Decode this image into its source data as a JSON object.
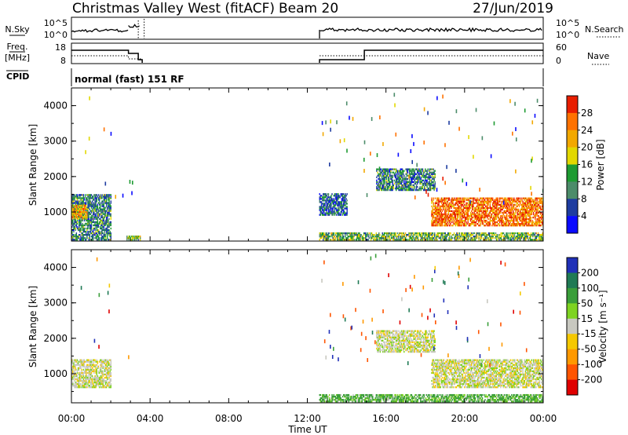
{
  "header": {
    "station": "Christmas Valley West (fitACF)",
    "beam": "Beam 20",
    "date": "27/Jun/2019"
  },
  "sky_panel": {
    "left_label": "N.Sky",
    "left_ticks": [
      "10^5",
      "10^0"
    ],
    "right_ticks": [
      "10^5",
      "10^0"
    ],
    "right_label": "N.Search"
  },
  "freq_panel": {
    "left_label_1": "Freq.",
    "left_label_2": "[MHz]",
    "left_ticks": [
      "18",
      "8"
    ],
    "right_ticks": [
      "60",
      "0"
    ],
    "right_label": "Nave"
  },
  "cpid_panel": {
    "label": "CPID",
    "mode": "normal (fast) 151 RF"
  },
  "chart_data": [
    {
      "type": "heatmap",
      "title": "",
      "ylabel": "Slant Range [km]",
      "xlabel": "",
      "y_ticks": [
        "4000",
        "3000",
        "2000",
        "1000"
      ],
      "ylim": [
        180,
        4500
      ],
      "colorbar": {
        "label": "Power [dB]",
        "ticks": [
          "28",
          "24",
          "20",
          "16",
          "12",
          "8",
          "4"
        ],
        "colors": [
          "#e81e00",
          "#ff7200",
          "#f2a800",
          "#e2d800",
          "#1e9b32",
          "#4c8c6a",
          "#1e3ca0",
          "#0a0aff"
        ]
      },
      "regions": [
        {
          "t": [
            0.0,
            2.0
          ],
          "range": [
            200,
            1500
          ],
          "value_db": 10
        },
        {
          "t": [
            0.0,
            0.8
          ],
          "range": [
            800,
            1200
          ],
          "value_db": 22
        },
        {
          "t": [
            2.8,
            3.5
          ],
          "range": [
            200,
            300
          ],
          "value_db": 14
        },
        {
          "t": [
            12.6,
            24.0
          ],
          "range": [
            200,
            400
          ],
          "value_db": 14
        },
        {
          "t": [
            12.6,
            14.0
          ],
          "range": [
            900,
            1500
          ],
          "value_db": 8
        },
        {
          "t": [
            15.5,
            18.5
          ],
          "range": [
            1600,
            2200
          ],
          "value_db": 10
        },
        {
          "t": [
            18.3,
            24.0
          ],
          "range": [
            600,
            1400
          ],
          "value_db": 26
        }
      ]
    },
    {
      "type": "heatmap",
      "title": "",
      "ylabel": "Slant Range [km]",
      "xlabel": "Time UT",
      "x_ticks": [
        "00:00",
        "04:00",
        "08:00",
        "12:00",
        "16:00",
        "20:00",
        "00:00"
      ],
      "y_ticks": [
        "4000",
        "3000",
        "2000",
        "1000"
      ],
      "ylim": [
        180,
        4500
      ],
      "colorbar": {
        "label": "Velocity [m s⁻¹]",
        "ticks": [
          "200",
          "100",
          "50",
          "15",
          "-15",
          "-50",
          "-100",
          "-200"
        ],
        "colors": [
          "#2030b8",
          "#1f7a55",
          "#3a9e3a",
          "#7ed321",
          "#c8c8c0",
          "#f5c800",
          "#ff9900",
          "#ff5500",
          "#e00000"
        ]
      },
      "regions": [
        {
          "t": [
            0.0,
            2.0
          ],
          "range": [
            600,
            1400
          ],
          "value_ms": 0
        },
        {
          "t": [
            12.6,
            24.0
          ],
          "range": [
            200,
            400
          ],
          "value_ms": 40
        },
        {
          "t": [
            15.5,
            18.5
          ],
          "range": [
            1600,
            2200
          ],
          "value_ms": 0
        },
        {
          "t": [
            18.3,
            24.0
          ],
          "range": [
            600,
            1400
          ],
          "value_ms": 0
        }
      ]
    }
  ]
}
